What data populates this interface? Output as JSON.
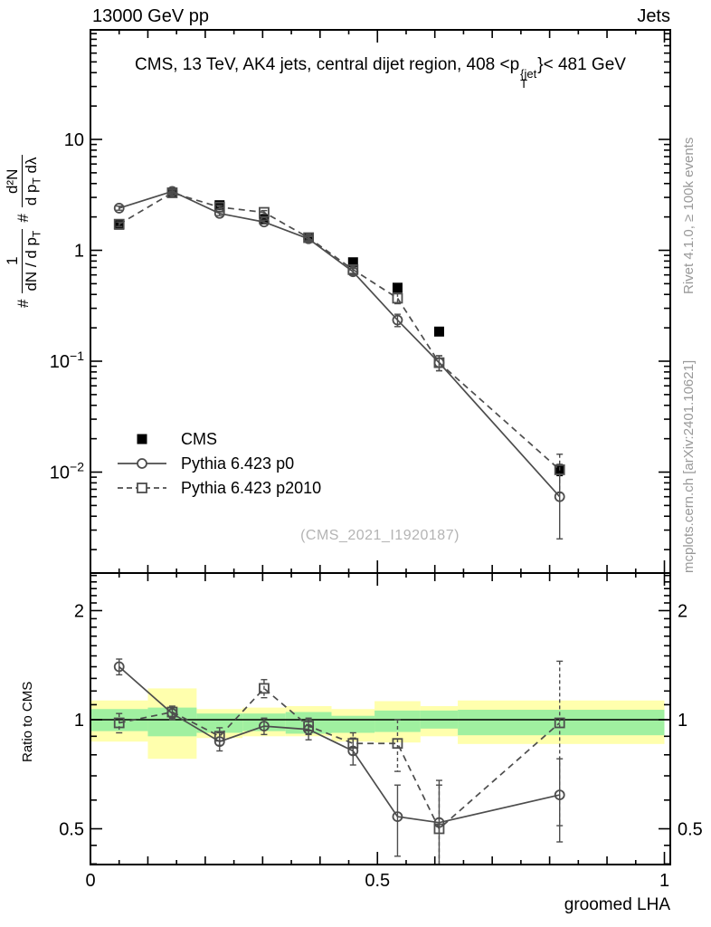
{
  "header": {
    "left": "13000 GeV pp",
    "right": "Jets"
  },
  "title": {
    "pre": "CMS, 13 TeV, AK4 jets, central dijet region, 408 <p",
    "sup": "{jet",
    "sub": "T",
    "post": "}< 481 GeV"
  },
  "ylabel_main": {
    "hash1": "#",
    "f1_num": "1",
    "f1_den_main": "dN / d p",
    "f1_den_sub": "T",
    "hash2": "#",
    "f2_num": "d²N",
    "f2_den_main": "d p",
    "f2_den_sub": "T",
    "f2_den_tail": " dλ"
  },
  "ylabel_ratio": "Ratio to CMS",
  "xlabel": "groomed LHA",
  "side_notes": {
    "top": "Rivet 4.1.0, ≥ 100k events",
    "bottom": "mcplots.cern.ch [arXiv:2401.10621]"
  },
  "watermark": "(CMS_2021_I1920187)",
  "legend": {
    "items": [
      {
        "label": "CMS",
        "marker": "filled-square",
        "line": "none"
      },
      {
        "label": "Pythia 6.423 p0",
        "marker": "open-circle",
        "line": "solid"
      },
      {
        "label": "Pythia 6.423 p2010",
        "marker": "open-square",
        "line": "dashed"
      }
    ]
  },
  "colors": {
    "band_yellow": "#ffffad",
    "band_green": "#a0f0a0",
    "model": "#4d4d4d",
    "cms": "#000000",
    "gray_text": "#999999",
    "watermark": "#b4b4b4"
  },
  "chart_data": {
    "type": "line",
    "title": "CMS, 13 TeV, AK4 jets, central dijet region, 408 <p_T^jet< 481 GeV",
    "xlabel": "groomed LHA",
    "ylabel": "# 1/(dN / d p_T) # d²N/(d p_T dλ)",
    "x_bin_centers": [
      0.05,
      0.1425,
      0.225,
      0.3025,
      0.38,
      0.4575,
      0.535,
      0.6075,
      0.8175
    ],
    "x_bin_edges": [
      0,
      0.1,
      0.185,
      0.265,
      0.34,
      0.42,
      0.495,
      0.575,
      0.64,
      1.0
    ],
    "xlim": [
      0,
      1.011
    ],
    "main": {
      "yscale": "log",
      "ylim": [
        0.00135,
        97
      ],
      "series": [
        {
          "name": "CMS",
          "marker": "filled-square",
          "line": "none",
          "values": [
            1.7,
            3.3,
            2.55,
            1.9,
            1.3,
            0.78,
            0.46,
            0.185,
            0.0105
          ],
          "errors": [
            0.06,
            0.1,
            0.08,
            0.06,
            0.05,
            0.035,
            0.025,
            0.012,
            0.0012
          ]
        },
        {
          "name": "Pythia 6.423 p2010",
          "marker": "open-square",
          "line": "dashed",
          "values": [
            1.72,
            3.3,
            2.45,
            2.2,
            1.3,
            0.67,
            0.37,
            0.097,
            0.0105
          ],
          "errors": [
            0.08,
            0.12,
            0.09,
            0.08,
            0.06,
            0.05,
            0.04,
            0.015,
            0.004
          ]
        },
        {
          "name": "Pythia 6.423 p0",
          "marker": "open-circle",
          "line": "solid",
          "values": [
            2.4,
            3.4,
            2.15,
            1.8,
            1.27,
            0.64,
            0.235,
            0.097,
            0.006
          ],
          "errors": [
            0.1,
            0.12,
            0.09,
            0.07,
            0.06,
            0.045,
            0.03,
            0.015,
            0.0035
          ]
        }
      ]
    },
    "ratio": {
      "yscale": "log",
      "ylim": [
        0.398,
        2.55
      ],
      "unity": 1,
      "bands": {
        "yellow": [
          [
            0.87,
            1.13
          ],
          [
            0.78,
            1.22
          ],
          [
            0.89,
            1.07
          ],
          [
            0.9,
            1.08
          ],
          [
            0.9,
            1.09
          ],
          [
            0.87,
            1.07
          ],
          [
            0.865,
            1.125
          ],
          [
            0.9,
            1.09
          ],
          [
            0.857,
            1.13
          ]
        ],
        "green": [
          [
            0.93,
            1.07
          ],
          [
            0.9,
            1.08
          ],
          [
            0.92,
            1.04
          ],
          [
            0.93,
            1.04
          ],
          [
            0.915,
            1.05
          ],
          [
            0.92,
            1.025
          ],
          [
            0.925,
            1.06
          ],
          [
            0.945,
            1.06
          ],
          [
            0.906,
            1.065
          ]
        ]
      },
      "series": [
        {
          "name": "Pythia 6.423 p2010",
          "marker": "open-square",
          "line": "dashed",
          "values": [
            0.98,
            1.05,
            0.9,
            1.22,
            0.96,
            0.86,
            0.86,
            0.5,
            0.98
          ],
          "errors": [
            0.06,
            0.04,
            0.05,
            0.07,
            0.05,
            0.06,
            0.14,
            0.16,
            0.47
          ]
        },
        {
          "name": "Pythia 6.423 p0",
          "marker": "open-circle",
          "line": "solid",
          "values": [
            1.4,
            1.04,
            0.87,
            0.96,
            0.94,
            0.82,
            0.54,
            0.52,
            0.62
          ],
          "errors": [
            0.07,
            0.04,
            0.05,
            0.05,
            0.06,
            0.07,
            0.12,
            0.16,
            0.16
          ]
        }
      ]
    },
    "axes": {
      "x_ticks": [
        {
          "v": 0,
          "label": "0"
        },
        {
          "v": 0.5,
          "label": "0.5"
        },
        {
          "v": 1,
          "label": "1"
        }
      ],
      "x_minor_step": 0.05,
      "y_main_ticks": [
        {
          "v": 10,
          "base": "10"
        },
        {
          "v": 1,
          "base": "1"
        },
        {
          "v": 0.1,
          "base": "10",
          "exp": "−1"
        },
        {
          "v": 0.01,
          "base": "10",
          "exp": "−2"
        }
      ],
      "y_ratio_ticks": [
        {
          "v": 2,
          "label": "2"
        },
        {
          "v": 1,
          "label": "1"
        },
        {
          "v": 0.5,
          "label": "0.5"
        }
      ],
      "y_ratio_minor": [
        0.4,
        0.45,
        0.6,
        0.7,
        0.8,
        0.9,
        1.1,
        1.2,
        1.3,
        1.4,
        1.5,
        1.6,
        1.7,
        1.8,
        1.9,
        2.1,
        2.2,
        2.3,
        2.4,
        2.5
      ]
    }
  }
}
